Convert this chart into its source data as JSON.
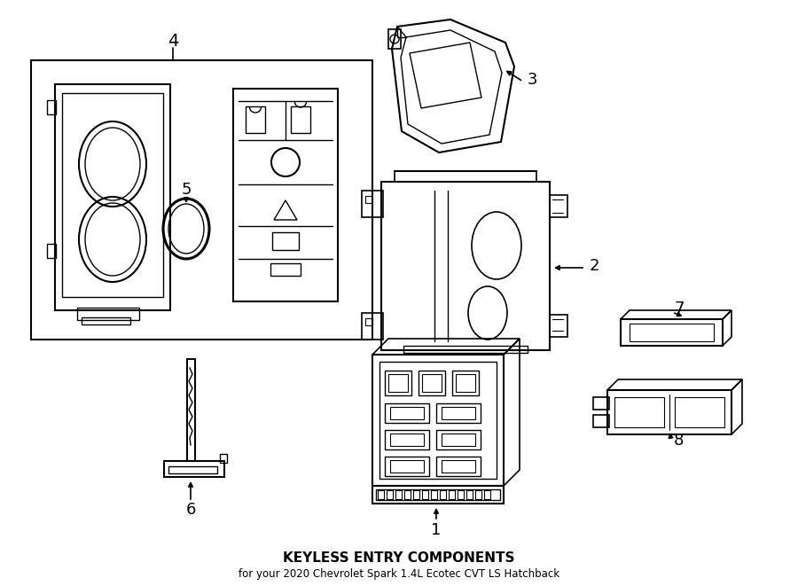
{
  "title": "KEYLESS ENTRY COMPONENTS",
  "subtitle": "for your 2020 Chevrolet Spark 1.4L Ecotec CVT LS Hatchback",
  "bg_color": "#ffffff",
  "line_color": "#000000",
  "fig_width": 9.0,
  "fig_height": 6.61
}
